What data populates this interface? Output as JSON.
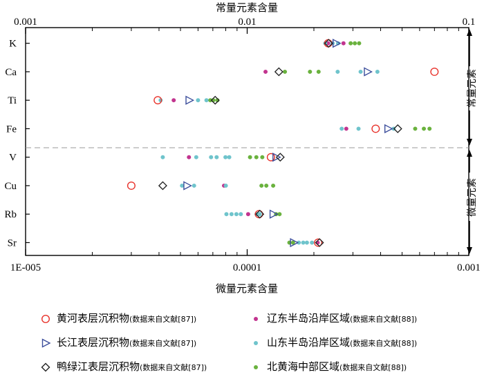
{
  "chart_data": {
    "type": "scatter",
    "top_axis": {
      "title": "常量元素含量",
      "scale": "log",
      "range": [
        0.001,
        0.1
      ],
      "tick_labels": [
        "0.001",
        "0.01",
        "0.1"
      ],
      "tick_values": [
        0.001,
        0.01,
        0.1
      ]
    },
    "bottom_axis": {
      "title": "微量元素含量",
      "scale": "log",
      "range": [
        1e-05,
        0.001
      ],
      "tick_labels": [
        "1E-005",
        "0.0001",
        "0.001"
      ],
      "tick_values": [
        1e-05,
        0.0001,
        0.001
      ]
    },
    "groups": [
      {
        "label": "常量元素",
        "axis": "top",
        "categories": [
          "K",
          "Ca",
          "Ti",
          "Fe"
        ]
      },
      {
        "label": "微量元素",
        "axis": "bottom",
        "categories": [
          "V",
          "Cu",
          "Rb",
          "Sr"
        ]
      }
    ],
    "series": [
      {
        "name": "黄河表层沉积物",
        "source": "(数据来自文献[87])",
        "marker": "circle-open",
        "color": "#e8312a",
        "points": [
          [
            "K",
            0.0232
          ],
          [
            "Ca",
            0.07
          ],
          [
            "Ti",
            0.00395
          ],
          [
            "Fe",
            0.038
          ],
          [
            "V",
            0.000128
          ],
          [
            "Cu",
            3e-05
          ],
          [
            "Rb",
            0.000113
          ],
          [
            "Sr",
            0.000209
          ]
        ]
      },
      {
        "name": "长江表层沉积物",
        "source": "(数据来自文献[87])",
        "marker": "triangle-right-open",
        "color": "#3b4d9b",
        "points": [
          [
            "K",
            0.0252
          ],
          [
            "Ca",
            0.0349
          ],
          [
            "Ti",
            0.00547
          ],
          [
            "Fe",
            0.0432
          ],
          [
            "V",
            0.000135
          ],
          [
            "Cu",
            5.35e-05
          ],
          [
            "Rb",
            0.000131
          ],
          [
            "Sr",
            0.000162
          ]
        ]
      },
      {
        "name": "鸭绿江表层沉积物",
        "source": "(数据来自文献[87])",
        "marker": "diamond-open",
        "color": "#222222",
        "points": [
          [
            "K",
            0.0233
          ],
          [
            "Ca",
            0.0139
          ],
          [
            "Ti",
            0.00717
          ],
          [
            "Fe",
            0.0478
          ],
          [
            "V",
            0.000141
          ],
          [
            "Cu",
            4.16e-05
          ],
          [
            "Rb",
            0.000114
          ],
          [
            "Sr",
            0.000212
          ]
        ]
      },
      {
        "name": "辽东半岛沿岸区域",
        "source": "(数据来自文献[88])",
        "marker": "dot",
        "color": "#c2348f",
        "points": [
          [
            "K",
            0.0232
          ],
          [
            "K",
            0.0272
          ],
          [
            "Ca",
            0.0121
          ],
          [
            "Ti",
            0.00466
          ],
          [
            "Fe",
            0.028
          ],
          [
            "V",
            5.46e-05
          ],
          [
            "Cu",
            7.86e-05
          ],
          [
            "Rb",
            0.000101
          ],
          [
            "Sr",
            0.000208
          ]
        ]
      },
      {
        "name": "山东半岛沿岸区域",
        "source": "(数据来自文献[88])",
        "marker": "dot",
        "color": "#6fc4cc",
        "points": [
          [
            "K",
            0.0225
          ],
          [
            "K",
            0.0243
          ],
          [
            "K",
            0.0257
          ],
          [
            "Ca",
            0.0256
          ],
          [
            "Ca",
            0.0325
          ],
          [
            "Ca",
            0.0387
          ],
          [
            "Ti",
            0.00407
          ],
          [
            "Ti",
            0.006
          ],
          [
            "Ti",
            0.00655
          ],
          [
            "Fe",
            0.0267
          ],
          [
            "Fe",
            0.0318
          ],
          [
            "Fe",
            0.0458
          ],
          [
            "V",
            4.16e-05
          ],
          [
            "V",
            5.89e-05
          ],
          [
            "V",
            6.87e-05
          ],
          [
            "V",
            7.28e-05
          ],
          [
            "V",
            7.98e-05
          ],
          [
            "V",
            8.3e-05
          ],
          [
            "Cu",
            5.08e-05
          ],
          [
            "Cu",
            5.76e-05
          ],
          [
            "Cu",
            8.01e-05
          ],
          [
            "Rb",
            8.06e-05
          ],
          [
            "Rb",
            8.5e-05
          ],
          [
            "Rb",
            8.94e-05
          ],
          [
            "Rb",
            9.36e-05
          ],
          [
            "Rb",
            0.0001102
          ],
          [
            "Rb",
            0.0001138
          ],
          [
            "Sr",
            0.000171
          ],
          [
            "Sr",
            0.000179
          ],
          [
            "Sr",
            0.000186
          ],
          [
            "Sr",
            0.000196
          ]
        ]
      },
      {
        "name": "北黄海中部区域",
        "source": "(数据来自文献[88])",
        "marker": "dot",
        "color": "#6ab23e",
        "points": [
          [
            "K",
            0.0293
          ],
          [
            "K",
            0.0306
          ],
          [
            "K",
            0.032
          ],
          [
            "Ca",
            0.0148
          ],
          [
            "Ca",
            0.0192
          ],
          [
            "Ca",
            0.021
          ],
          [
            "Ti",
            0.00682
          ],
          [
            "Ti",
            0.00703
          ],
          [
            "Ti",
            0.00734
          ],
          [
            "Fe",
            0.0573
          ],
          [
            "Fe",
            0.0627
          ],
          [
            "Fe",
            0.0665
          ],
          [
            "V",
            0.000103
          ],
          [
            "V",
            0.00011
          ],
          [
            "V",
            0.000117
          ],
          [
            "Cu",
            0.000116
          ],
          [
            "Cu",
            0.000122
          ],
          [
            "Cu",
            0.000131
          ],
          [
            "Rb",
            0.000135
          ],
          [
            "Rb",
            0.00014
          ],
          [
            "Sr",
            0.000155
          ],
          [
            "Sr",
            0.000161
          ]
        ]
      }
    ],
    "grid": false,
    "divider": "dashed line between 常量元素 and 微量元素",
    "legend_position": "bottom"
  }
}
